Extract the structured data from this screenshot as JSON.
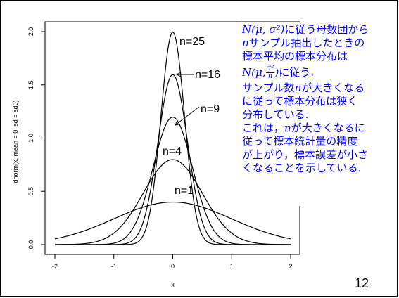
{
  "slide_number": "12",
  "annotation": {
    "line1_math": "N(μ, σ²)",
    "line1_text": "に従う母数団から",
    "line2_math": "n",
    "line2_text": "サンプル抽出したときの",
    "line3": "標本平均の標本分布は",
    "line4_math_pre": "N(μ,",
    "line4_frac_num": "σ²",
    "line4_frac_den": "n",
    "line4_math_post": ")",
    "line4_text": "に従う.",
    "line5_pre": "サンプル数",
    "line5_math": "n",
    "line5_post": "が大きくなる",
    "line6": "に従って標本分布は狭く",
    "line7": "分布している.",
    "line8_pre": "これは，",
    "line8_math": "n",
    "line8_post": "が大きくなるに",
    "line9": "従って標本統計量の精度",
    "line10": "が上がり，標本誤差が小さ",
    "line11": "くなることを示している."
  },
  "chart_data": {
    "type": "line",
    "title": "",
    "xlabel": "x",
    "ylabel": "dnorm(x, mean = 0, sd = sd5)",
    "xlim": [
      -2,
      2
    ],
    "ylim": [
      0,
      2
    ],
    "x_ticks": [
      "-2",
      "-1",
      "0",
      "1",
      "2"
    ],
    "y_ticks": [
      "0.0",
      "0.5",
      "1.0",
      "1.5",
      "2.0"
    ],
    "grid": false,
    "curve_color": "#000000",
    "series": [
      {
        "label": "n=1",
        "mean": 0,
        "sd": 1
      },
      {
        "label": "n=4",
        "mean": 0,
        "sd": 0.5
      },
      {
        "label": "n=9",
        "mean": 0,
        "sd": 0.3333
      },
      {
        "label": "n=16",
        "mean": 0,
        "sd": 0.25
      },
      {
        "label": "n=25",
        "mean": 0,
        "sd": 0.2
      }
    ]
  }
}
